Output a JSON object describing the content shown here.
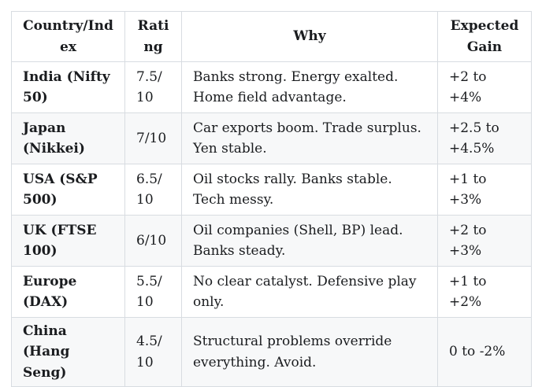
{
  "chart_data": {
    "type": "table",
    "columns": [
      "Country/Index",
      "Rating",
      "Why",
      "Expected Gain"
    ],
    "rows": [
      {
        "country": "India (Nifty 50)",
        "rating": "7.5/10",
        "why": "Banks strong. Energy exalted. Home field advantage.",
        "expected_gain": "+2 to +4%"
      },
      {
        "country": "Japan (Nikkei)",
        "rating": "7/10",
        "why": "Car exports boom. Trade surplus. Yen stable.",
        "expected_gain": "+2.5 to +4.5%"
      },
      {
        "country": "USA (S&P 500)",
        "rating": "6.5/10",
        "why": "Oil stocks rally. Banks stable. Tech messy.",
        "expected_gain": "+1 to +3%"
      },
      {
        "country": "UK (FTSE 100)",
        "rating": "6/10",
        "why": "Oil companies (Shell, BP) lead. Banks steady.",
        "expected_gain": "+2 to +3%"
      },
      {
        "country": "Europe (DAX)",
        "rating": "5.5/10",
        "why": "No clear catalyst. Defensive play only.",
        "expected_gain": "+1 to +2%"
      },
      {
        "country": "China (Hang Seng)",
        "rating": "4.5/10",
        "why": "Structural problems override everything. Avoid.",
        "expected_gain": "0 to -2%"
      }
    ]
  },
  "colors": {
    "text": "#1a1c1f",
    "border": "#d8dce1",
    "row_stripe": "#f7f8f9",
    "header_background": "#ffffff",
    "page_background": "#ffffff"
  }
}
